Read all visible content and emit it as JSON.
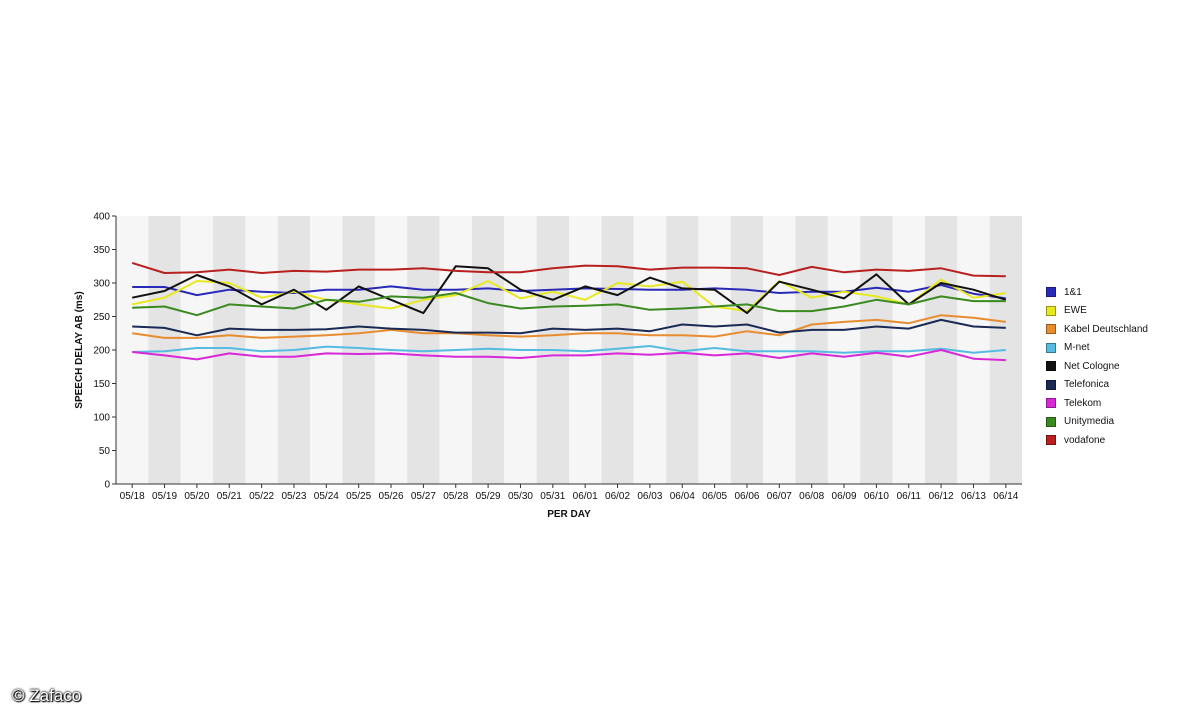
{
  "chart_data": {
    "type": "line",
    "title": "",
    "xlabel": "PER DAY",
    "ylabel": "SPEECH DELAY AB (ms)",
    "ylim": [
      0,
      400
    ],
    "yticks": [
      0,
      50,
      100,
      150,
      200,
      250,
      300,
      350,
      400
    ],
    "grid": "alternating vertical bands",
    "legend_position": "right",
    "categories": [
      "05/18",
      "05/19",
      "05/20",
      "05/21",
      "05/22",
      "05/23",
      "05/24",
      "05/25",
      "05/26",
      "05/27",
      "05/28",
      "05/29",
      "05/30",
      "05/31",
      "06/01",
      "06/02",
      "06/03",
      "06/04",
      "06/05",
      "06/06",
      "06/07",
      "06/08",
      "06/09",
      "06/10",
      "06/11",
      "06/12",
      "06/13",
      "06/14"
    ],
    "series": [
      {
        "name": "1&1",
        "color": "#2a2ab8",
        "values": [
          294,
          294,
          282,
          290,
          287,
          285,
          290,
          290,
          295,
          290,
          290,
          292,
          288,
          290,
          292,
          291,
          290,
          290,
          292,
          290,
          285,
          287,
          287,
          293,
          287,
          297,
          284,
          277
        ]
      },
      {
        "name": "EWE",
        "color": "#e8e820",
        "values": [
          268,
          278,
          303,
          300,
          278,
          287,
          275,
          268,
          262,
          275,
          282,
          303,
          277,
          287,
          275,
          300,
          295,
          302,
          265,
          258,
          303,
          278,
          287,
          280,
          268,
          305,
          278,
          285
        ]
      },
      {
        "name": "Kabel Deutschland",
        "color": "#e88c30",
        "values": [
          225,
          218,
          218,
          222,
          218,
          220,
          222,
          225,
          230,
          225,
          225,
          222,
          220,
          222,
          225,
          225,
          222,
          222,
          220,
          228,
          222,
          238,
          242,
          245,
          240,
          252,
          248,
          242
        ]
      },
      {
        "name": "M-net",
        "color": "#55bbe0",
        "values": [
          197,
          198,
          203,
          203,
          198,
          200,
          205,
          203,
          200,
          198,
          200,
          202,
          200,
          200,
          198,
          202,
          206,
          198,
          203,
          198,
          198,
          198,
          196,
          198,
          198,
          202,
          196,
          200
        ]
      },
      {
        "name": "Net Cologne",
        "color": "#111111",
        "values": [
          278,
          288,
          312,
          295,
          268,
          290,
          260,
          295,
          275,
          255,
          325,
          322,
          290,
          275,
          295,
          282,
          308,
          292,
          290,
          255,
          302,
          290,
          277,
          313,
          268,
          300,
          290,
          275
        ]
      },
      {
        "name": "Telefonica",
        "color": "#1a2a55",
        "values": [
          235,
          233,
          222,
          232,
          230,
          230,
          231,
          235,
          232,
          230,
          226,
          226,
          225,
          232,
          230,
          232,
          228,
          238,
          235,
          238,
          226,
          230,
          230,
          235,
          232,
          245,
          235,
          233
        ]
      },
      {
        "name": "Telekom",
        "color": "#d828d8",
        "values": [
          197,
          192,
          186,
          195,
          190,
          190,
          195,
          194,
          195,
          192,
          190,
          190,
          188,
          192,
          192,
          195,
          193,
          196,
          192,
          195,
          188,
          195,
          190,
          196,
          190,
          200,
          187,
          185
        ]
      },
      {
        "name": "Unitymedia",
        "color": "#3a8a20",
        "values": [
          263,
          265,
          252,
          268,
          265,
          262,
          275,
          272,
          280,
          278,
          285,
          270,
          262,
          265,
          266,
          268,
          260,
          262,
          265,
          268,
          258,
          258,
          265,
          275,
          268,
          280,
          273,
          273
        ]
      },
      {
        "name": "vodafone",
        "color": "#b82020",
        "values": [
          330,
          315,
          316,
          320,
          315,
          318,
          317,
          320,
          320,
          322,
          318,
          316,
          316,
          322,
          326,
          325,
          320,
          323,
          323,
          322,
          312,
          324,
          316,
          320,
          318,
          322,
          311,
          310
        ]
      }
    ]
  },
  "watermark": "© Zafaco"
}
